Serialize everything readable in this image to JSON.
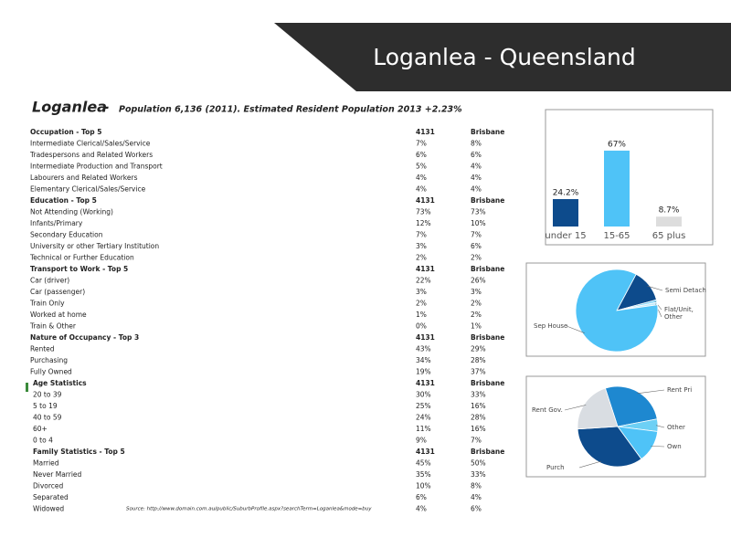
{
  "header": {
    "title": "Loganlea  -  Queensland"
  },
  "heading": {
    "name": "Loganlea",
    "dash": "-",
    "subtitle": "Population 6,136 (2011). Estimated Resident Population 2013 +2.23%"
  },
  "table": {
    "sections": [
      {
        "title": "Occupation - Top 5",
        "col1": "4131",
        "col2": "Brisbane",
        "rows": [
          [
            "Intermediate Clerical/Sales/Service",
            "7%",
            "8%"
          ],
          [
            "Tradespersons and Related Workers",
            "6%",
            "6%"
          ],
          [
            "Intermediate Production and Transport",
            "5%",
            "4%"
          ],
          [
            "Labourers and Related Workers",
            "4%",
            "4%"
          ],
          [
            "Elementary Clerical/Sales/Service",
            "4%",
            "4%"
          ]
        ]
      },
      {
        "title": "Education - Top 5",
        "col1": "4131",
        "col2": "Brisbane",
        "rows": [
          [
            "Not Attending (Working)",
            "73%",
            "73%"
          ],
          [
            "Infants/Primary",
            "12%",
            "10%"
          ],
          [
            "Secondary Education",
            "7%",
            "7%"
          ],
          [
            "University or other Tertiary Institution",
            "3%",
            "6%"
          ],
          [
            "Technical or Further Education",
            "2%",
            "2%"
          ]
        ]
      },
      {
        "title": "Transport to Work - Top 5",
        "col1": "4131",
        "col2": "Brisbane",
        "rows": [
          [
            "Car (driver)",
            "22%",
            "26%"
          ],
          [
            "Car (passenger)",
            "3%",
            "3%"
          ],
          [
            "Train Only",
            "2%",
            "2%"
          ],
          [
            "Worked at home",
            "1%",
            "2%"
          ],
          [
            "Train & Other",
            "0%",
            "1%"
          ]
        ]
      },
      {
        "title": "Nature of Occupancy - Top 3",
        "col1": "4131",
        "col2": "Brisbane",
        "rows": [
          [
            "Rented",
            "43%",
            "29%"
          ],
          [
            "Purchasing",
            "34%",
            "28%"
          ],
          [
            "Fully Owned",
            "19%",
            "37%"
          ]
        ]
      },
      {
        "title": "Age Statistics",
        "col1": "4131",
        "col2": "Brisbane",
        "rows": [
          [
            "20 to 39",
            "30%",
            "33%"
          ],
          [
            "5 to 19",
            "25%",
            "16%"
          ],
          [
            "40 to 59",
            "24%",
            "28%"
          ],
          [
            "60+",
            "11%",
            "16%"
          ],
          [
            "0 to 4",
            "9%",
            "7%"
          ]
        ]
      },
      {
        "title": "Family Statistics - Top 5",
        "col1": "4131",
        "col2": "Brisbane",
        "rows": [
          [
            "Married",
            "45%",
            "50%"
          ],
          [
            "Never Married",
            "35%",
            "33%"
          ],
          [
            "Divorced",
            "10%",
            "8%"
          ],
          [
            "Separated",
            "6%",
            "4%"
          ],
          [
            "Widowed",
            "4%",
            "6%"
          ]
        ]
      }
    ]
  },
  "source": "Source:  http://www.domain.com.au/public/SuburbProfile.aspx?searchTerm=Loganlea&mode=buy",
  "charts": [
    {
      "type": "bar",
      "categories": [
        "under 15",
        "15-65",
        "65 plus"
      ],
      "values": [
        24.2,
        67,
        8.7
      ],
      "value_labels": [
        "24.2%",
        "67%",
        "8.7%"
      ],
      "colors": [
        "#0d4b8c",
        "#4fc3f7",
        "#dddddd"
      ]
    },
    {
      "type": "pie",
      "labels": [
        "Semi Detach",
        "Flat/Unit,",
        "Other",
        "Sep House"
      ],
      "values": [
        13,
        1,
        1,
        85
      ],
      "colors": [
        "#0d4b8c",
        "#7fd3f7",
        "#bfe9fb",
        "#4fc3f7"
      ]
    },
    {
      "type": "pie",
      "labels": [
        "Rent Pri",
        "Other",
        "Own",
        "Purch",
        "Rent Gov."
      ],
      "values": [
        27,
        5,
        13,
        34,
        21
      ],
      "colors": [
        "#1e88d0",
        "#6dd0f5",
        "#4fc3f7",
        "#0d4b8c",
        "#d9dde2"
      ]
    }
  ]
}
